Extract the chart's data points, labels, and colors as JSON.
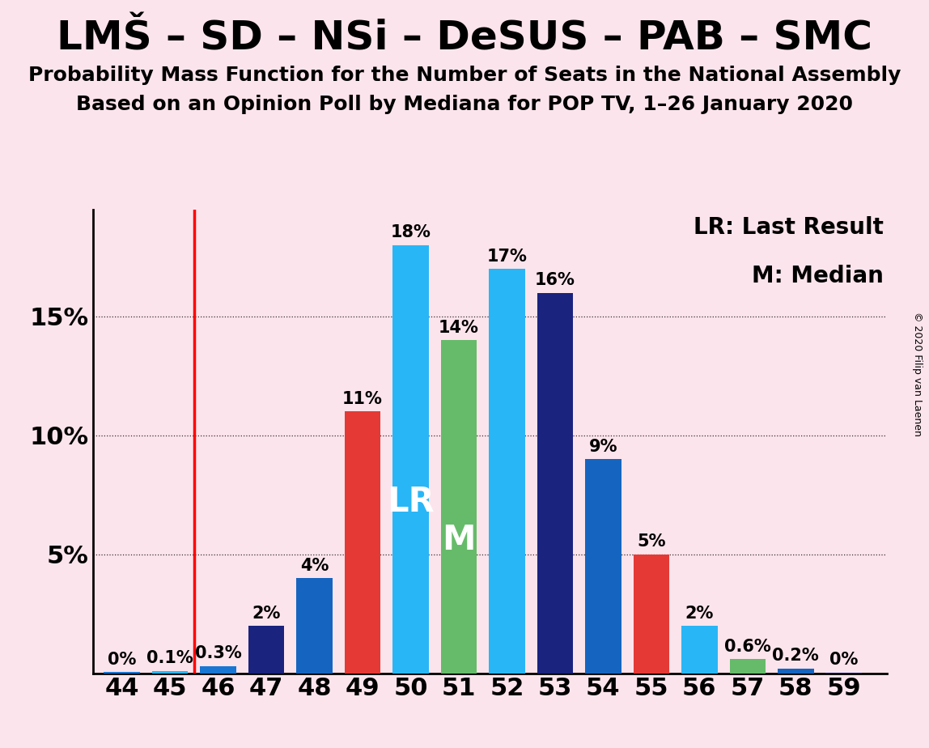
{
  "title": "LMŠ – SD – NSi – DeSUS – PAB – SMC",
  "subtitle1": "Probability Mass Function for the Number of Seats in the National Assembly",
  "subtitle2": "Based on an Opinion Poll by Mediana for POP TV, 1–26 January 2020",
  "background_color": "#fce4ec",
  "seats": [
    44,
    45,
    46,
    47,
    48,
    49,
    50,
    51,
    52,
    53,
    54,
    55,
    56,
    57,
    58,
    59
  ],
  "values": [
    0.0005,
    0.001,
    0.003,
    0.02,
    0.04,
    0.11,
    0.18,
    0.14,
    0.17,
    0.16,
    0.09,
    0.05,
    0.02,
    0.006,
    0.002,
    0.0003
  ],
  "labels": [
    "0%",
    "0.1%",
    "0.3%",
    "2%",
    "4%",
    "11%",
    "18%",
    "14%",
    "17%",
    "16%",
    "9%",
    "5%",
    "2%",
    "0.6%",
    "0.2%",
    "0%"
  ],
  "colors": [
    "#1976d2",
    "#29b6f6",
    "#1976d2",
    "#1a237e",
    "#1565c0",
    "#e53935",
    "#29b6f6",
    "#66bb6a",
    "#29b6f6",
    "#1a237e",
    "#1565c0",
    "#e53935",
    "#29b6f6",
    "#66bb6a",
    "#1565c0",
    "#1a237e"
  ],
  "lr_seat": 50,
  "median_seat": 51,
  "vline_x": 45.5,
  "legend_lr": "LR: Last Result",
  "legend_m": "M: Median",
  "copyright": "© 2020 Filip van Laenen",
  "ylim": [
    0,
    0.195
  ],
  "title_fontsize": 36,
  "subtitle_fontsize": 18,
  "label_fontsize": 15,
  "axis_fontsize": 22,
  "lr_label_fontsize": 30,
  "legend_fontsize": 20
}
